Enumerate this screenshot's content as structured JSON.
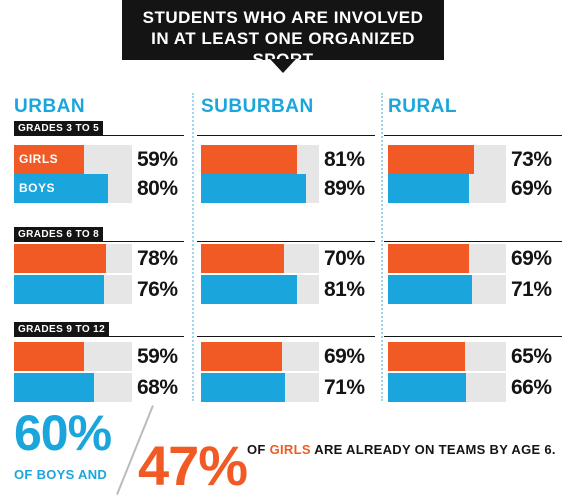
{
  "title": {
    "line1": "STUDENTS WHO ARE INVOLVED",
    "line2": "IN AT LEAST ONE ORGANIZED SPORT"
  },
  "colors": {
    "girls": "#f15a24",
    "boys": "#1aa6dc",
    "dark": "#141414",
    "track": "#e6e6e6"
  },
  "chart_data": {
    "type": "bar",
    "title": "STUDENTS WHO ARE INVOLVED IN AT LEAST ONE ORGANIZED SPORT",
    "regions": [
      "URBAN",
      "SUBURBAN",
      "RURAL"
    ],
    "grades": [
      "GRADES 3 TO 5",
      "GRADES 6 TO 8",
      "GRADES 9 TO 12"
    ],
    "series_labels": [
      "GIRLS",
      "BOYS"
    ],
    "values": {
      "URBAN": [
        [
          59,
          80
        ],
        [
          78,
          76
        ],
        [
          59,
          68
        ]
      ],
      "SUBURBAN": [
        [
          81,
          89
        ],
        [
          70,
          81
        ],
        [
          69,
          71
        ]
      ],
      "RURAL": [
        [
          73,
          69
        ],
        [
          69,
          71
        ],
        [
          65,
          66
        ]
      ]
    },
    "unit": "%",
    "xlim": [
      0,
      100
    ]
  },
  "footer": {
    "boys_pct": "60%",
    "boys_text": "OF BOYS AND",
    "girls_pct": "47%",
    "text_pre": "OF",
    "text_highlight": "GIRLS",
    "text_post": "ARE ALREADY ON TEAMS BY AGE 6."
  }
}
